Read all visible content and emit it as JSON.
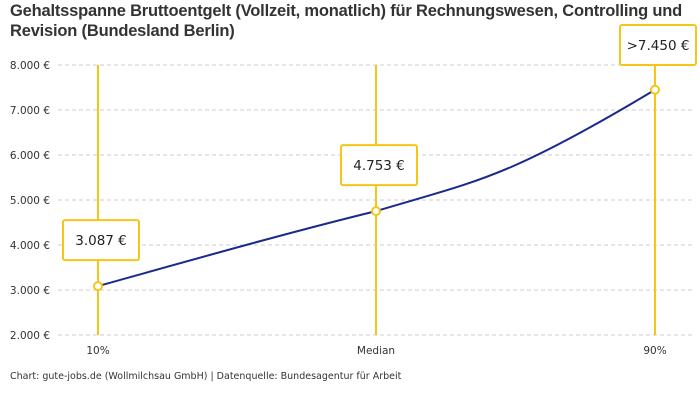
{
  "chart_data": {
    "type": "line",
    "title": "Gehaltsspanne Bruttoentgelt (Vollzeit, monatlich) für Rechnungswesen, Controlling und Revision (Bundesland Berlin)",
    "categories": [
      "10%",
      "Median",
      "90%"
    ],
    "values": [
      3087,
      4753,
      7450
    ],
    "data_labels": [
      "3.087 €",
      "4.753 €",
      ">7.450 €"
    ],
    "ylim": [
      2000,
      8000
    ],
    "yticks": [
      2000,
      3000,
      4000,
      5000,
      6000,
      7000,
      8000
    ],
    "ytick_labels": [
      "2.000 €",
      "3.000 €",
      "4.000 €",
      "5.000 €",
      "6.000 €",
      "7.000 €",
      "8.000 €"
    ],
    "grid": true,
    "colors": {
      "line": "#1a2a8c",
      "marker": "#f5c518",
      "grid": "#cccccc"
    }
  },
  "footer": "Chart: gute-jobs.de (Wollmilchsau GmbH) | Datenquelle: Bundesagentur für Arbeit"
}
